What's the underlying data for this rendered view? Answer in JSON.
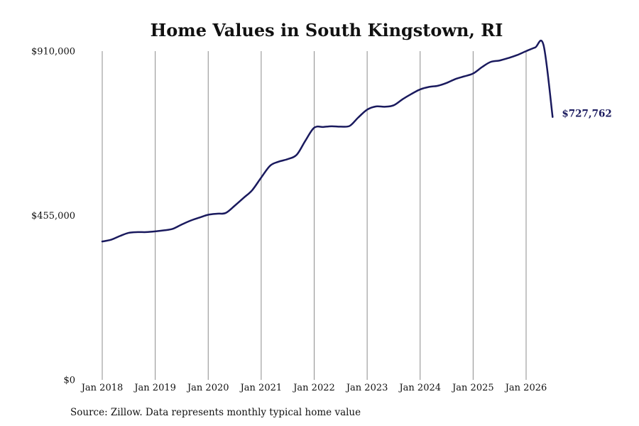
{
  "chart_data": {
    "type": "line",
    "title": "Home Values in South Kingstown, RI",
    "xlabel": "",
    "ylabel": "",
    "ylim": [
      0,
      910000
    ],
    "yticks": [
      0,
      455000,
      910000
    ],
    "ytick_labels": [
      "$0",
      "$455,000",
      "$910,000"
    ],
    "xticks": [
      2018,
      2019,
      2020,
      2021,
      2022,
      2023,
      2024,
      2025,
      2026
    ],
    "xtick_labels": [
      "Jan 2018",
      "Jan 2019",
      "Jan 2020",
      "Jan 2021",
      "Jan 2022",
      "Jan 2023",
      "Jan 2024",
      "Jan 2025",
      "Jan 2026"
    ],
    "grid": "vertical",
    "line_color": "#1a1a5e",
    "series": [
      {
        "x": [
          2018.0,
          2018.17,
          2018.33,
          2018.5,
          2018.67,
          2018.83,
          2019.0,
          2019.17,
          2019.33,
          2019.5,
          2019.67,
          2019.83,
          2020.0,
          2020.17,
          2020.33,
          2020.5,
          2020.67,
          2020.83,
          2021.0,
          2021.17,
          2021.33,
          2021.5,
          2021.67,
          2021.83,
          2022.0,
          2022.17,
          2022.33,
          2022.5,
          2022.67,
          2022.83,
          2023.0,
          2023.17,
          2023.33,
          2023.5,
          2023.67,
          2023.83,
          2024.0,
          2024.17,
          2024.33,
          2024.5,
          2024.67,
          2024.83,
          2025.0,
          2025.17,
          2025.33,
          2025.5,
          2025.67,
          2025.83,
          2026.0,
          2026.17,
          2026.33,
          2026.5
        ],
        "y": [
          383000,
          388000,
          398000,
          407000,
          409000,
          409000,
          411000,
          414000,
          418000,
          430000,
          441000,
          449000,
          457000,
          460000,
          462000,
          482000,
          504000,
          525000,
          560000,
          593000,
          604000,
          611000,
          623000,
          661000,
          698000,
          700000,
          702000,
          701000,
          703000,
          726000,
          748000,
          757000,
          756000,
          760000,
          777000,
          791000,
          804000,
          811000,
          814000,
          822000,
          833000,
          840000,
          848000,
          866000,
          880000,
          884000,
          891000,
          899000,
          910000,
          920000,
          926000,
          727762
        ],
        "end_label": "$727,762"
      }
    ]
  },
  "source": "Source: Zillow. Data represents monthly typical home value"
}
